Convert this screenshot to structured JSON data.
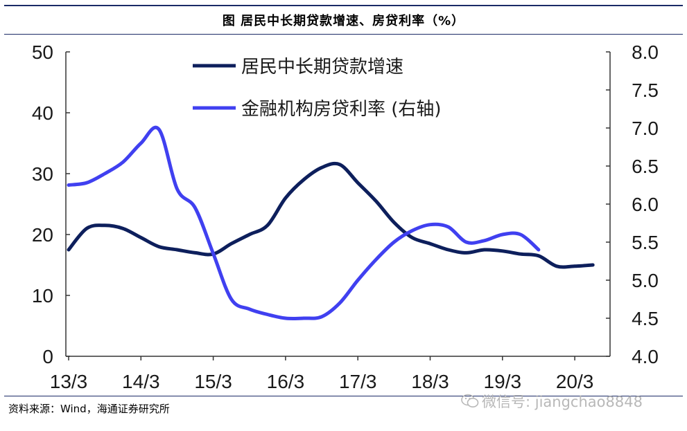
{
  "figure": {
    "title": "图 居民中长期贷款增速、房贷利率（%）",
    "source": "资料来源：Wind，海通证券研究所",
    "watermark": "微信号: jiangchao8848"
  },
  "chart_data": {
    "type": "line",
    "x_ticks": [
      "13/3",
      "14/3",
      "15/3",
      "16/3",
      "17/3",
      "18/3",
      "19/3",
      "20/3"
    ],
    "y_left": {
      "range": [
        0,
        50
      ],
      "ticks": [
        "0",
        "10",
        "20",
        "30",
        "40",
        "50"
      ]
    },
    "y_right": {
      "range": [
        4.0,
        8.0
      ],
      "ticks": [
        "4.0",
        "4.5",
        "5.0",
        "5.5",
        "6.0",
        "6.5",
        "7.0",
        "7.5",
        "8.0"
      ]
    },
    "series": [
      {
        "name": "居民中长期贷款增速",
        "axis": "left",
        "color": "#0d1f5c",
        "points": [
          [
            "13/3",
            17.5
          ],
          [
            "13/6",
            21.0
          ],
          [
            "13/9",
            21.5
          ],
          [
            "13/12",
            21.0
          ],
          [
            "14/3",
            19.5
          ],
          [
            "14/6",
            18.0
          ],
          [
            "14/9",
            17.5
          ],
          [
            "14/12",
            17.0
          ],
          [
            "15/3",
            16.8
          ],
          [
            "15/6",
            18.5
          ],
          [
            "15/9",
            20.0
          ],
          [
            "15/12",
            21.5
          ],
          [
            "16/3",
            26.0
          ],
          [
            "16/6",
            29.0
          ],
          [
            "16/9",
            31.0
          ],
          [
            "16/12",
            31.5
          ],
          [
            "17/3",
            28.5
          ],
          [
            "17/6",
            25.5
          ],
          [
            "17/9",
            22.0
          ],
          [
            "17/12",
            19.5
          ],
          [
            "18/3",
            18.5
          ],
          [
            "18/6",
            17.5
          ],
          [
            "18/9",
            17.0
          ],
          [
            "18/12",
            17.5
          ],
          [
            "19/3",
            17.3
          ],
          [
            "19/6",
            16.8
          ],
          [
            "19/9",
            16.5
          ],
          [
            "19/12",
            14.8
          ],
          [
            "20/3",
            14.8
          ],
          [
            "20/6",
            15.0
          ]
        ]
      },
      {
        "name": "金融机构房贷利率 (右轴)",
        "axis": "right",
        "color": "#4040f0",
        "points": [
          [
            "13/3",
            6.25
          ],
          [
            "13/6",
            6.28
          ],
          [
            "13/9",
            6.4
          ],
          [
            "13/12",
            6.55
          ],
          [
            "14/3",
            6.8
          ],
          [
            "14/6",
            6.98
          ],
          [
            "14/9",
            6.2
          ],
          [
            "14/12",
            5.95
          ],
          [
            "15/3",
            5.35
          ],
          [
            "15/6",
            4.75
          ],
          [
            "15/9",
            4.62
          ],
          [
            "15/12",
            4.55
          ],
          [
            "16/3",
            4.5
          ],
          [
            "16/6",
            4.5
          ],
          [
            "16/9",
            4.52
          ],
          [
            "16/12",
            4.7
          ],
          [
            "17/3",
            5.0
          ],
          [
            "17/6",
            5.27
          ],
          [
            "17/9",
            5.5
          ],
          [
            "17/12",
            5.65
          ],
          [
            "18/3",
            5.73
          ],
          [
            "18/6",
            5.7
          ],
          [
            "18/9",
            5.5
          ],
          [
            "18/12",
            5.52
          ],
          [
            "19/3",
            5.6
          ],
          [
            "19/6",
            5.6
          ],
          [
            "19/9",
            5.4
          ]
        ]
      }
    ],
    "legend": "top-center",
    "grid": false
  }
}
